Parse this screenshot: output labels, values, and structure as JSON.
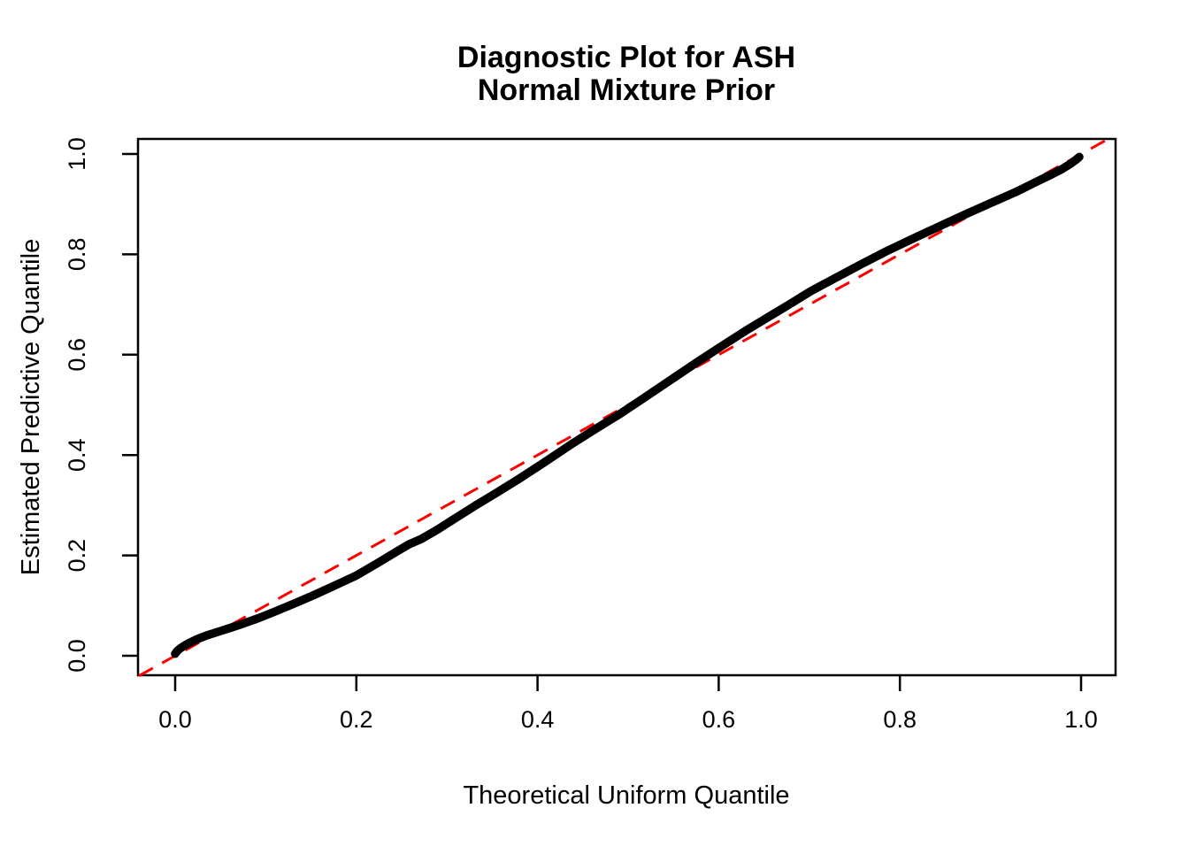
{
  "chart_data": {
    "type": "line",
    "title": "Diagnostic Plot for ASH\nNormal Mixture Prior",
    "title_lines": [
      "Diagnostic Plot for ASH",
      "Normal Mixture Prior"
    ],
    "xlabel": "Theoretical Uniform Quantile",
    "ylabel": "Estimated Predictive Quantile",
    "xlim": [
      -0.04,
      1.04
    ],
    "ylim": [
      -0.04,
      1.04
    ],
    "x_ticks": [
      0.0,
      0.2,
      0.4,
      0.6,
      0.8,
      1.0
    ],
    "y_ticks": [
      0.0,
      0.2,
      0.4,
      0.6,
      0.8,
      1.0
    ],
    "grid": false,
    "legend": "none",
    "background_color": "#FFFFFF",
    "series": [
      {
        "name": "reference-line-y-equals-x",
        "style": "dashed",
        "color": "#FF0000",
        "points": [
          [
            -0.04,
            -0.04
          ],
          [
            1.04,
            1.04
          ]
        ]
      },
      {
        "name": "estimated-predictive-quantiles",
        "style": "thick-point-curve",
        "color": "#000000",
        "points": [
          [
            0.0,
            0.004
          ],
          [
            0.002,
            0.009
          ],
          [
            0.005,
            0.014
          ],
          [
            0.01,
            0.02
          ],
          [
            0.016,
            0.026
          ],
          [
            0.024,
            0.033
          ],
          [
            0.034,
            0.04
          ],
          [
            0.046,
            0.047
          ],
          [
            0.06,
            0.055
          ],
          [
            0.075,
            0.064
          ],
          [
            0.092,
            0.075
          ],
          [
            0.11,
            0.088
          ],
          [
            0.13,
            0.103
          ],
          [
            0.152,
            0.12
          ],
          [
            0.175,
            0.139
          ],
          [
            0.2,
            0.16
          ],
          [
            0.222,
            0.183
          ],
          [
            0.243,
            0.206
          ],
          [
            0.258,
            0.222
          ],
          [
            0.272,
            0.233
          ],
          [
            0.29,
            0.252
          ],
          [
            0.31,
            0.275
          ],
          [
            0.332,
            0.3
          ],
          [
            0.355,
            0.325
          ],
          [
            0.38,
            0.353
          ],
          [
            0.408,
            0.386
          ],
          [
            0.436,
            0.42
          ],
          [
            0.464,
            0.452
          ],
          [
            0.492,
            0.483
          ],
          [
            0.52,
            0.517
          ],
          [
            0.548,
            0.551
          ],
          [
            0.576,
            0.585
          ],
          [
            0.604,
            0.618
          ],
          [
            0.63,
            0.648
          ],
          [
            0.652,
            0.672
          ],
          [
            0.676,
            0.698
          ],
          [
            0.702,
            0.727
          ],
          [
            0.728,
            0.752
          ],
          [
            0.756,
            0.779
          ],
          [
            0.785,
            0.806
          ],
          [
            0.815,
            0.832
          ],
          [
            0.845,
            0.857
          ],
          [
            0.875,
            0.882
          ],
          [
            0.905,
            0.906
          ],
          [
            0.93,
            0.926
          ],
          [
            0.95,
            0.944
          ],
          [
            0.966,
            0.958
          ],
          [
            0.979,
            0.97
          ],
          [
            0.988,
            0.98
          ],
          [
            0.994,
            0.988
          ],
          [
            0.998,
            0.994
          ]
        ]
      }
    ]
  }
}
